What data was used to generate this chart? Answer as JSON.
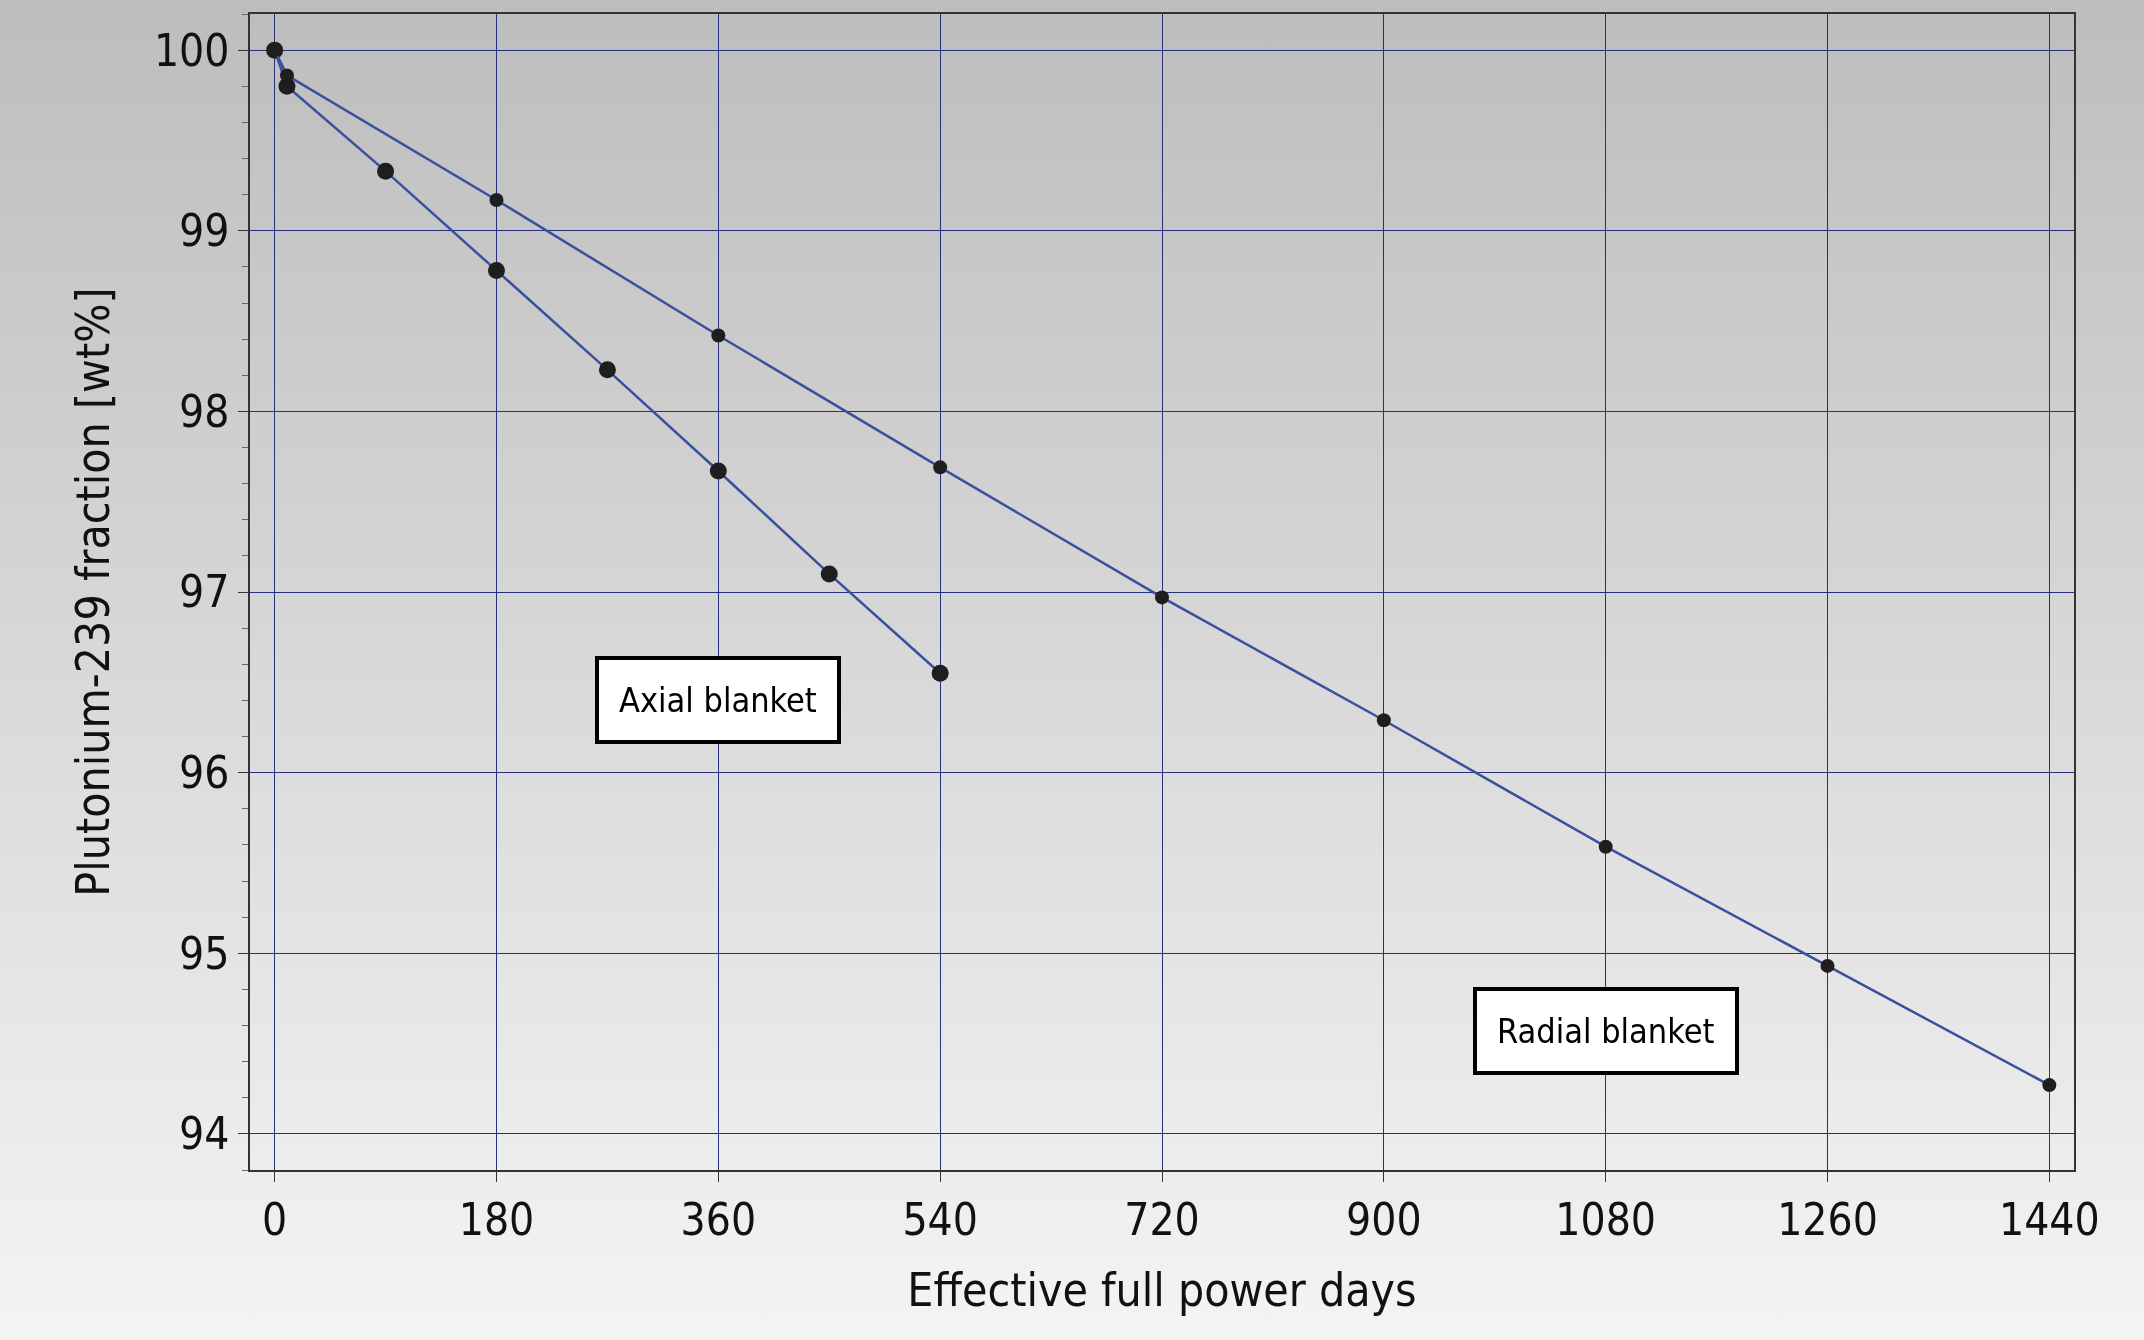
{
  "chart_data": {
    "type": "line",
    "xlabel": "Effective full power days",
    "ylabel": "Plutonium-239 fraction [wt%]",
    "series": [
      {
        "name": "Axial blanket",
        "color": "#3a4fa0",
        "x": [
          0,
          10,
          90,
          180,
          270,
          360,
          450,
          540
        ],
        "values": [
          100,
          99.8,
          99.33,
          98.78,
          98.23,
          97.67,
          97.1,
          96.55
        ]
      },
      {
        "name": "Radial blanket",
        "color": "#3a4fa0",
        "x": [
          0,
          10,
          180,
          360,
          540,
          720,
          900,
          1080,
          1260,
          1440
        ],
        "values": [
          100,
          99.86,
          99.17,
          98.42,
          97.69,
          96.97,
          96.29,
          95.59,
          94.93,
          94.27
        ]
      }
    ],
    "xlim": [
      -20,
      1460
    ],
    "xticks": [
      0,
      180,
      360,
      540,
      720,
      900,
      1080,
      1260,
      1440
    ],
    "ylim": [
      93.8,
      100.2
    ],
    "yticks": [
      94,
      95,
      96,
      97,
      98,
      99,
      100
    ],
    "grid": true,
    "marker": "circle",
    "line_style": "solid",
    "legend": false
  }
}
